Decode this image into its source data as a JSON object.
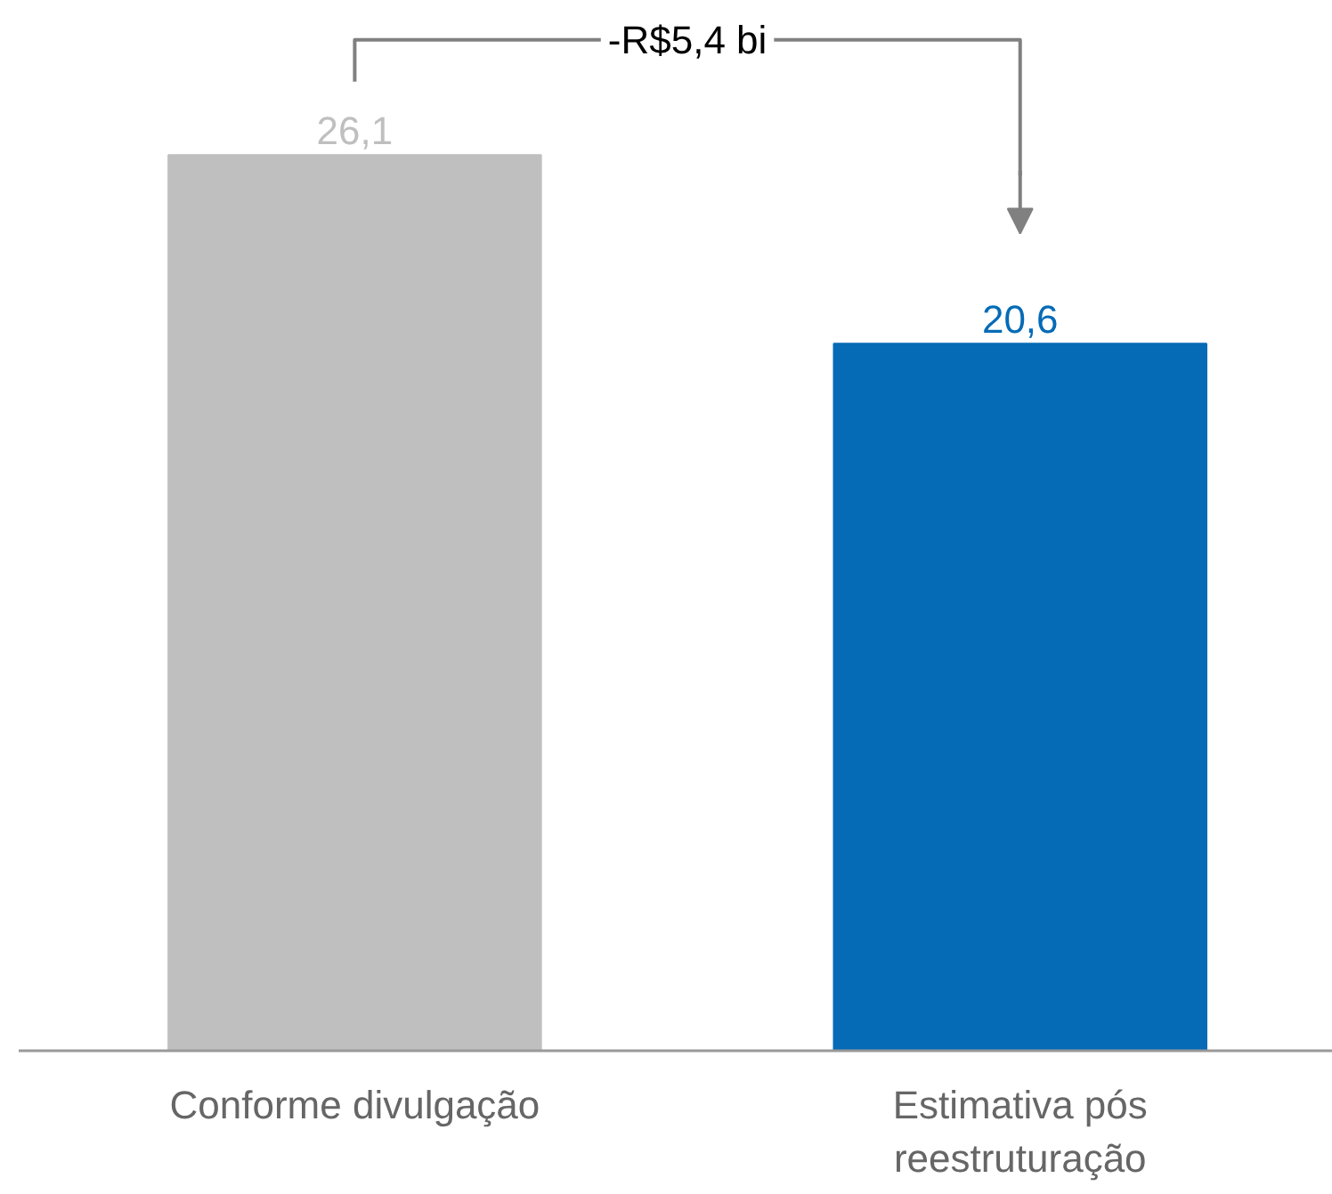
{
  "chart_data": {
    "type": "bar",
    "categories": [
      "Conforme divulgação",
      "Estimativa pós reestruturação"
    ],
    "values": [
      26.1,
      20.6
    ],
    "colors": [
      "#bfbfbf",
      "#056bb6"
    ],
    "value_labels": [
      "26,1",
      "20,6"
    ],
    "tick_labels": "x",
    "annotations": [
      "-R$5,4 bi"
    ]
  }
}
